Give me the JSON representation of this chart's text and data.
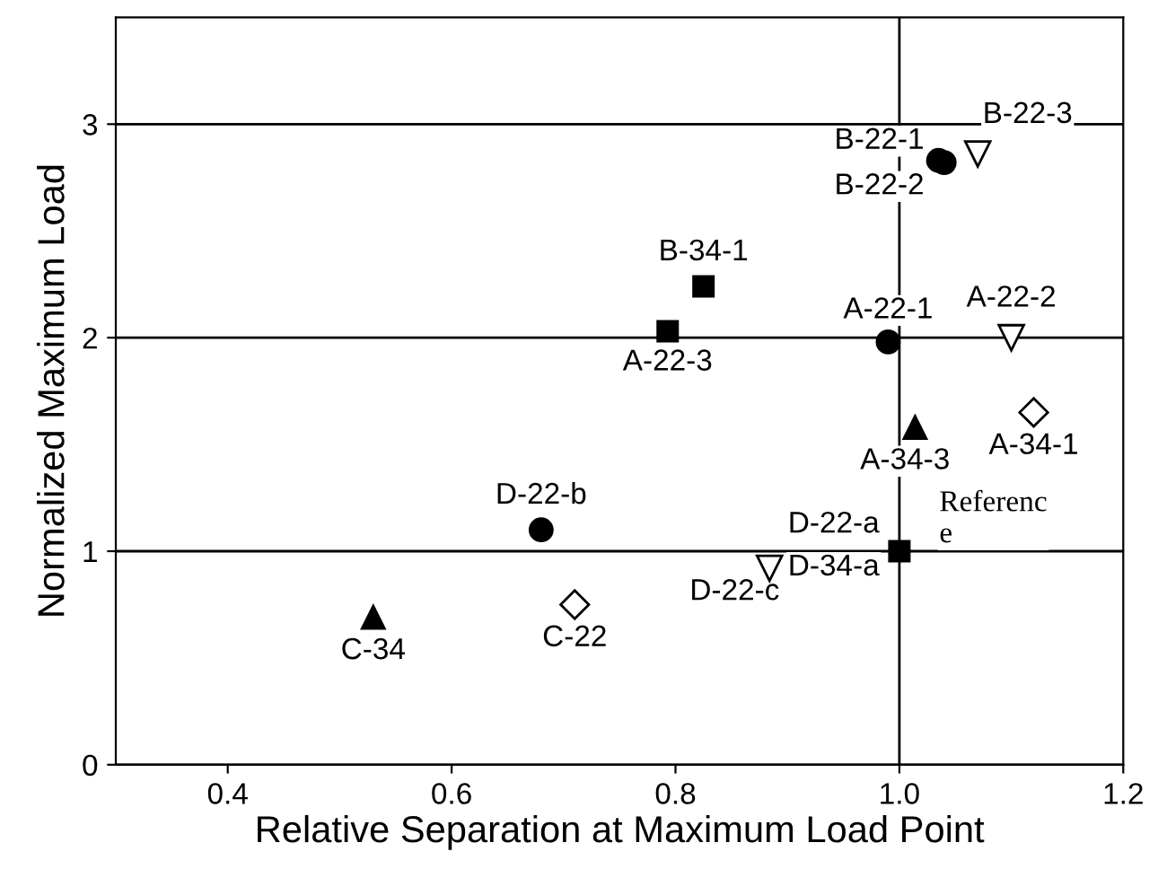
{
  "chart_data": {
    "type": "scatter",
    "xlabel": "Relative Separation at Maximum Load Point",
    "ylabel": "Normalized Maximum Load",
    "xlim": [
      0.3,
      1.2
    ],
    "xticks": [
      0.4,
      0.6,
      0.8,
      {
        "value": 1.0,
        "label": "1.0"
      },
      1.2
    ],
    "ylim": [
      0,
      3.5
    ],
    "yticks": [
      0,
      1,
      2,
      3
    ],
    "grid": "y",
    "ref_lines": [
      {
        "axis": "x",
        "value": 1.0,
        "color": "#000000"
      }
    ],
    "series": [
      {
        "color": "#000000",
        "marker": "circle",
        "x": [
          1.04,
          1.035,
          0.99,
          0.68
        ],
        "values": [
          2.82,
          2.83,
          1.98,
          1.1
        ]
      },
      {
        "color": "#000000",
        "marker": "square",
        "x": [
          0.825,
          0.793,
          1.0
        ],
        "values": [
          2.24,
          2.03,
          1.0
        ]
      },
      {
        "color": "#000000",
        "marker": "triangle",
        "x": [
          1.014,
          0.53
        ],
        "values": [
          1.58,
          0.69
        ]
      },
      {
        "color": "#000000",
        "marker": "triangle_down",
        "x": [
          1.07,
          1.1,
          0.884
        ],
        "values": [
          2.86,
          2.0,
          0.92
        ]
      },
      {
        "color": "#000000",
        "marker": "diamond",
        "x": [
          1.12,
          0.71
        ],
        "values": [
          1.65,
          0.75
        ]
      }
    ],
    "annotations": [
      {
        "text": "B-22-1",
        "x": 1.04,
        "y": 2.82
      },
      {
        "text": "B-22-2",
        "x": 1.04,
        "y": 2.82
      },
      {
        "text": "B-22-3",
        "x": 1.07,
        "y": 2.86
      },
      {
        "text": "B-34-1",
        "x": 0.825,
        "y": 2.24
      },
      {
        "text": "A-22-3",
        "x": 0.793,
        "y": 2.03
      },
      {
        "text": "A-22-1",
        "x": 0.99,
        "y": 1.98
      },
      {
        "text": "A-22-2",
        "x": 1.1,
        "y": 2.0
      },
      {
        "text": "A-34-3",
        "x": 1.014,
        "y": 1.58
      },
      {
        "text": "A-34-1",
        "x": 1.12,
        "y": 1.65
      },
      {
        "text": "D-22-b",
        "x": 0.68,
        "y": 1.1
      },
      {
        "text": "D-22-a",
        "x": 1.0,
        "y": 1.0
      },
      {
        "text": "D-34-a",
        "x": 1.0,
        "y": 1.0
      },
      {
        "text": "D-22-c",
        "x": 0.884,
        "y": 0.92
      },
      {
        "text": "C-34",
        "x": 0.53,
        "y": 0.69
      },
      {
        "text": "C-22",
        "x": 0.71,
        "y": 0.75
      },
      {
        "text": "Referenc\ne",
        "x": 1.0,
        "y": 1.0
      }
    ]
  }
}
